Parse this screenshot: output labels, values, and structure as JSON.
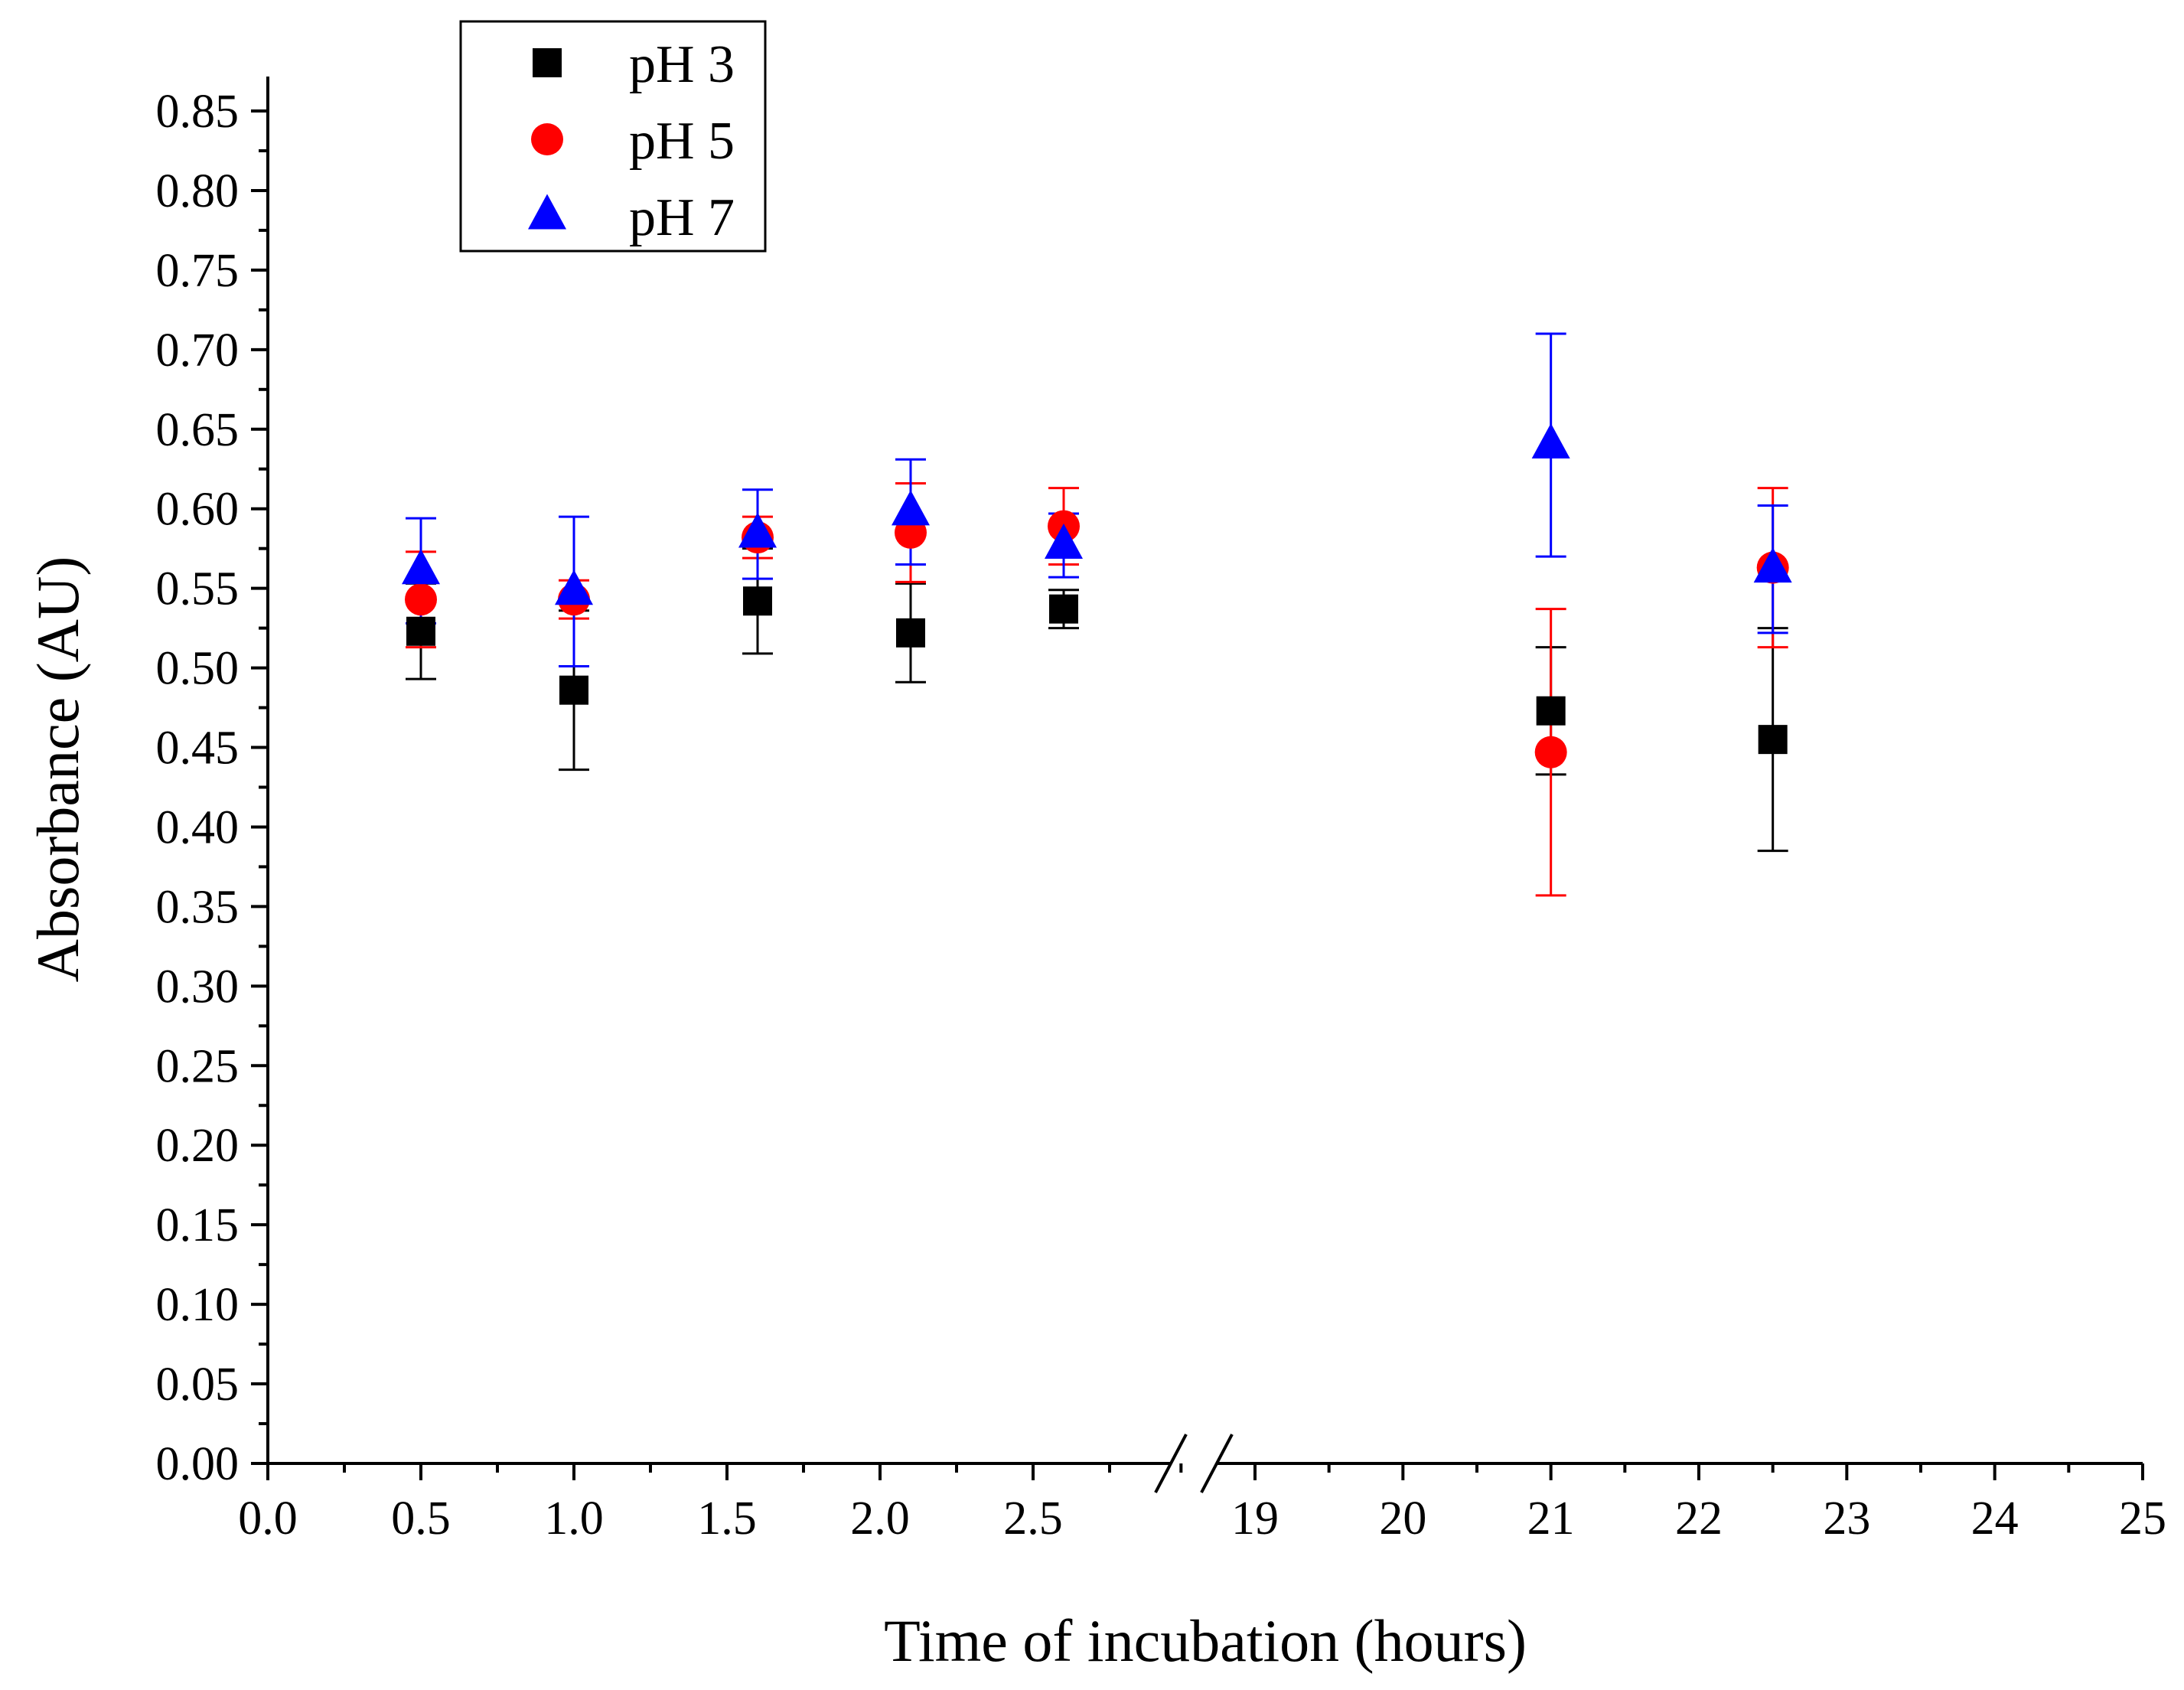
{
  "chart_data": {
    "type": "scatter",
    "title": "",
    "xlabel": "Time of incubation (hours)",
    "ylabel": "Absorbance (AU)",
    "ylim": [
      0,
      0.87
    ],
    "x_segments": [
      {
        "range": [
          0,
          2.95
        ],
        "ticks": [
          0.0,
          0.5,
          1.0,
          1.5,
          2.0,
          2.5
        ],
        "tick_labels": [
          "0.0",
          "0.5",
          "1.0",
          "1.5",
          "2.0",
          "2.5"
        ]
      },
      {
        "range": [
          18.5,
          25
        ],
        "ticks": [
          19,
          20,
          21,
          22,
          23,
          24,
          25
        ],
        "tick_labels": [
          "19",
          "20",
          "21",
          "22",
          "23",
          "24",
          "25"
        ]
      }
    ],
    "y_ticks": [
      0.0,
      0.05,
      0.1,
      0.15,
      0.2,
      0.25,
      0.3,
      0.35,
      0.4,
      0.45,
      0.5,
      0.55,
      0.6,
      0.65,
      0.7,
      0.75,
      0.8,
      0.85
    ],
    "y_tick_labels": [
      "0.00",
      "0.05",
      "0.10",
      "0.15",
      "0.20",
      "0.25",
      "0.30",
      "0.35",
      "0.40",
      "0.45",
      "0.50",
      "0.55",
      "0.60",
      "0.65",
      "0.70",
      "0.75",
      "0.80",
      "0.85"
    ],
    "axis_break": true,
    "legend_position": "top-left",
    "series": [
      {
        "name": "pH 3",
        "marker": "square",
        "color": "#000000",
        "x": [
          0.5,
          1.0,
          1.6,
          2.1,
          2.6,
          21,
          22.5
        ],
        "y": [
          0.523,
          0.486,
          0.542,
          0.522,
          0.537,
          0.473,
          0.455
        ],
        "err": [
          0.03,
          0.05,
          0.033,
          0.031,
          0.012,
          0.04,
          0.07
        ]
      },
      {
        "name": "pH 5",
        "marker": "circle",
        "color": "#ff0000",
        "x": [
          0.5,
          1.0,
          1.6,
          2.1,
          2.6,
          21,
          22.5
        ],
        "y": [
          0.543,
          0.543,
          0.582,
          0.585,
          0.589,
          0.447,
          0.563
        ],
        "err": [
          0.03,
          0.012,
          0.013,
          0.031,
          0.024,
          0.09,
          0.05
        ]
      },
      {
        "name": "pH 7",
        "marker": "triangle",
        "color": "#0000ff",
        "x": [
          0.5,
          1.0,
          1.6,
          2.1,
          2.6,
          21,
          22.5
        ],
        "y": [
          0.561,
          0.548,
          0.584,
          0.598,
          0.577,
          0.64,
          0.562
        ],
        "err": [
          0.033,
          0.047,
          0.028,
          0.033,
          0.02,
          0.07,
          0.04
        ]
      }
    ]
  }
}
